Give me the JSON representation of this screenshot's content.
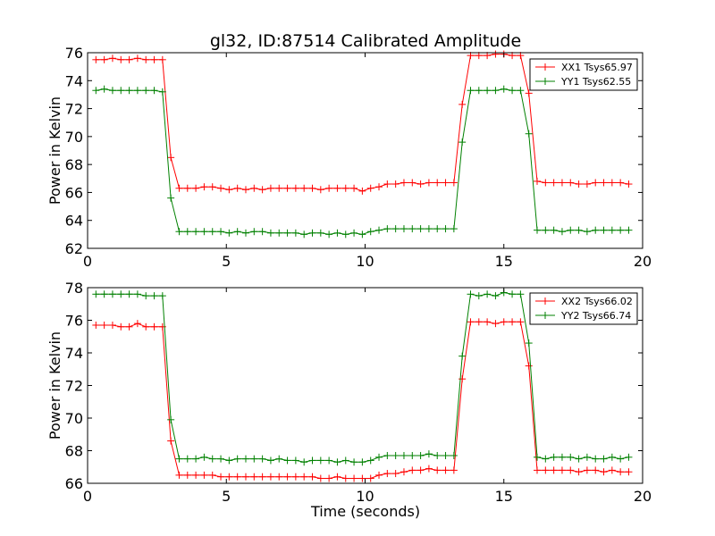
{
  "figure": {
    "title": "gl32, ID:87514 Calibrated Amplitude",
    "xlabel": "Time (seconds)"
  },
  "chart_data": [
    {
      "type": "line",
      "ylabel": "Power in Kelvin",
      "xlim": [
        0,
        20
      ],
      "ylim": [
        62,
        76
      ],
      "xticks": [
        0,
        5,
        10,
        15,
        20
      ],
      "yticks": [
        62,
        64,
        66,
        68,
        70,
        72,
        74,
        76
      ],
      "grid": false,
      "legend_position": "top-right",
      "series": [
        {
          "name": "XX1 Tsys65.97",
          "color": "#ff0000",
          "x": [
            0.3,
            0.6,
            0.9,
            1.2,
            1.5,
            1.8,
            2.1,
            2.4,
            2.7,
            3.0,
            3.3,
            3.6,
            3.9,
            4.2,
            4.5,
            4.8,
            5.1,
            5.4,
            5.7,
            6.0,
            6.3,
            6.6,
            6.9,
            7.2,
            7.5,
            7.8,
            8.1,
            8.4,
            8.7,
            9.0,
            9.3,
            9.6,
            9.9,
            10.2,
            10.5,
            10.8,
            11.1,
            11.4,
            11.7,
            12.0,
            12.3,
            12.6,
            12.9,
            13.2,
            13.5,
            13.8,
            14.1,
            14.4,
            14.7,
            15.0,
            15.3,
            15.6,
            15.9,
            16.2,
            16.5,
            16.8,
            17.1,
            17.4,
            17.7,
            18.0,
            18.3,
            18.6,
            18.9,
            19.2,
            19.5
          ],
          "y": [
            75.5,
            75.5,
            75.6,
            75.5,
            75.5,
            75.6,
            75.5,
            75.5,
            75.5,
            68.5,
            66.3,
            66.3,
            66.3,
            66.4,
            66.4,
            66.3,
            66.2,
            66.3,
            66.2,
            66.3,
            66.2,
            66.3,
            66.3,
            66.3,
            66.3,
            66.3,
            66.3,
            66.2,
            66.3,
            66.3,
            66.3,
            66.3,
            66.1,
            66.3,
            66.4,
            66.6,
            66.6,
            66.7,
            66.7,
            66.6,
            66.7,
            66.7,
            66.7,
            66.7,
            72.3,
            75.8,
            75.8,
            75.8,
            75.9,
            75.9,
            75.8,
            75.8,
            73.1,
            66.8,
            66.7,
            66.7,
            66.7,
            66.7,
            66.6,
            66.6,
            66.7,
            66.7,
            66.7,
            66.7,
            66.6
          ]
        },
        {
          "name": "YY1 Tsys62.55",
          "color": "#008000",
          "x": [
            0.3,
            0.6,
            0.9,
            1.2,
            1.5,
            1.8,
            2.1,
            2.4,
            2.7,
            3.0,
            3.3,
            3.6,
            3.9,
            4.2,
            4.5,
            4.8,
            5.1,
            5.4,
            5.7,
            6.0,
            6.3,
            6.6,
            6.9,
            7.2,
            7.5,
            7.8,
            8.1,
            8.4,
            8.7,
            9.0,
            9.3,
            9.6,
            9.9,
            10.2,
            10.5,
            10.8,
            11.1,
            11.4,
            11.7,
            12.0,
            12.3,
            12.6,
            12.9,
            13.2,
            13.5,
            13.8,
            14.1,
            14.4,
            14.7,
            15.0,
            15.3,
            15.6,
            15.9,
            16.2,
            16.5,
            16.8,
            17.1,
            17.4,
            17.7,
            18.0,
            18.3,
            18.6,
            18.9,
            19.2,
            19.5
          ],
          "y": [
            73.3,
            73.4,
            73.3,
            73.3,
            73.3,
            73.3,
            73.3,
            73.3,
            73.2,
            65.6,
            63.2,
            63.2,
            63.2,
            63.2,
            63.2,
            63.2,
            63.1,
            63.2,
            63.1,
            63.2,
            63.2,
            63.1,
            63.1,
            63.1,
            63.1,
            63.0,
            63.1,
            63.1,
            63.0,
            63.1,
            63.0,
            63.1,
            63.0,
            63.2,
            63.3,
            63.4,
            63.4,
            63.4,
            63.4,
            63.4,
            63.4,
            63.4,
            63.4,
            63.4,
            69.6,
            73.3,
            73.3,
            73.3,
            73.3,
            73.4,
            73.3,
            73.3,
            70.2,
            63.3,
            63.3,
            63.3,
            63.2,
            63.3,
            63.3,
            63.2,
            63.3,
            63.3,
            63.3,
            63.3,
            63.3
          ]
        }
      ]
    },
    {
      "type": "line",
      "ylabel": "Power in Kelvin",
      "xlim": [
        0,
        20
      ],
      "ylim": [
        66,
        78
      ],
      "xticks": [
        0,
        5,
        10,
        15,
        20
      ],
      "yticks": [
        66,
        68,
        70,
        72,
        74,
        76,
        78
      ],
      "grid": false,
      "legend_position": "top-right",
      "series": [
        {
          "name": "XX2 Tsys66.02",
          "color": "#ff0000",
          "x": [
            0.3,
            0.6,
            0.9,
            1.2,
            1.5,
            1.8,
            2.1,
            2.4,
            2.7,
            3.0,
            3.3,
            3.6,
            3.9,
            4.2,
            4.5,
            4.8,
            5.1,
            5.4,
            5.7,
            6.0,
            6.3,
            6.6,
            6.9,
            7.2,
            7.5,
            7.8,
            8.1,
            8.4,
            8.7,
            9.0,
            9.3,
            9.6,
            9.9,
            10.2,
            10.5,
            10.8,
            11.1,
            11.4,
            11.7,
            12.0,
            12.3,
            12.6,
            12.9,
            13.2,
            13.5,
            13.8,
            14.1,
            14.4,
            14.7,
            15.0,
            15.3,
            15.6,
            15.9,
            16.2,
            16.5,
            16.8,
            17.1,
            17.4,
            17.7,
            18.0,
            18.3,
            18.6,
            18.9,
            19.2,
            19.5
          ],
          "y": [
            75.7,
            75.7,
            75.7,
            75.6,
            75.6,
            75.8,
            75.6,
            75.6,
            75.6,
            68.6,
            66.5,
            66.5,
            66.5,
            66.5,
            66.5,
            66.4,
            66.4,
            66.4,
            66.4,
            66.4,
            66.4,
            66.4,
            66.4,
            66.4,
            66.4,
            66.4,
            66.4,
            66.3,
            66.3,
            66.4,
            66.3,
            66.3,
            66.3,
            66.3,
            66.5,
            66.6,
            66.6,
            66.7,
            66.8,
            66.8,
            66.9,
            66.8,
            66.8,
            66.8,
            72.4,
            75.9,
            75.9,
            75.9,
            75.8,
            75.9,
            75.9,
            75.9,
            73.2,
            66.8,
            66.8,
            66.8,
            66.8,
            66.8,
            66.7,
            66.8,
            66.8,
            66.7,
            66.8,
            66.7,
            66.7
          ]
        },
        {
          "name": "YY2 Tsys66.74",
          "color": "#008000",
          "x": [
            0.3,
            0.6,
            0.9,
            1.2,
            1.5,
            1.8,
            2.1,
            2.4,
            2.7,
            3.0,
            3.3,
            3.6,
            3.9,
            4.2,
            4.5,
            4.8,
            5.1,
            5.4,
            5.7,
            6.0,
            6.3,
            6.6,
            6.9,
            7.2,
            7.5,
            7.8,
            8.1,
            8.4,
            8.7,
            9.0,
            9.3,
            9.6,
            9.9,
            10.2,
            10.5,
            10.8,
            11.1,
            11.4,
            11.7,
            12.0,
            12.3,
            12.6,
            12.9,
            13.2,
            13.5,
            13.8,
            14.1,
            14.4,
            14.7,
            15.0,
            15.3,
            15.6,
            15.9,
            16.2,
            16.5,
            16.8,
            17.1,
            17.4,
            17.7,
            18.0,
            18.3,
            18.6,
            18.9,
            19.2,
            19.5
          ],
          "y": [
            77.6,
            77.6,
            77.6,
            77.6,
            77.6,
            77.6,
            77.5,
            77.5,
            77.5,
            69.9,
            67.5,
            67.5,
            67.5,
            67.6,
            67.5,
            67.5,
            67.4,
            67.5,
            67.5,
            67.5,
            67.5,
            67.4,
            67.5,
            67.4,
            67.4,
            67.3,
            67.4,
            67.4,
            67.4,
            67.3,
            67.4,
            67.3,
            67.3,
            67.4,
            67.6,
            67.7,
            67.7,
            67.7,
            67.7,
            67.7,
            67.8,
            67.7,
            67.7,
            67.7,
            73.8,
            77.6,
            77.5,
            77.6,
            77.5,
            77.7,
            77.6,
            77.6,
            74.6,
            67.6,
            67.5,
            67.6,
            67.6,
            67.6,
            67.5,
            67.6,
            67.5,
            67.5,
            67.6,
            67.5,
            67.6
          ]
        }
      ]
    }
  ]
}
